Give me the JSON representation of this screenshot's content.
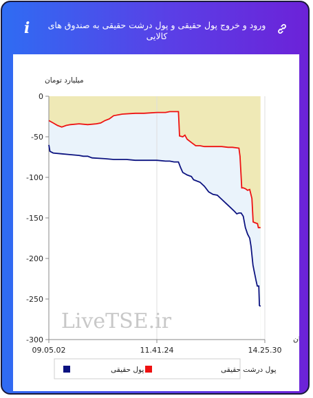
{
  "header": {
    "title": "ورود و خروج پول حقیقی و پول درشت حقیقی به صندوق های کالایی",
    "info_icon": "info-icon",
    "link_icon": "link-icon",
    "info_glyph": "i"
  },
  "watermark": "LiveTSE.ir",
  "chart_data": {
    "type": "line",
    "ylabel": "میلیارد تومان",
    "xlabel": "زمان",
    "ylim": [
      -300,
      0
    ],
    "y_ticks": [
      0,
      -50,
      -100,
      -150,
      -200,
      -250,
      -300
    ],
    "x_tick_labels": [
      "09.05.02",
      "11.41.24",
      "14.25.30"
    ],
    "x_domain": [
      0,
      100
    ],
    "x_tick_positions": [
      0,
      50,
      100
    ],
    "grid": "vertical-at-x-ticks",
    "legend_placement": "bottom",
    "series": [
      {
        "name": "پول حقیقی",
        "color": "#0b1280",
        "points": [
          [
            0,
            -60
          ],
          [
            0.5,
            -68
          ],
          [
            2,
            -70
          ],
          [
            6,
            -71
          ],
          [
            10,
            -72
          ],
          [
            14,
            -73
          ],
          [
            16,
            -74
          ],
          [
            18,
            -74
          ],
          [
            20,
            -76
          ],
          [
            26,
            -77
          ],
          [
            30,
            -78
          ],
          [
            36,
            -78
          ],
          [
            40,
            -79
          ],
          [
            46,
            -79
          ],
          [
            50,
            -79
          ],
          [
            54,
            -80
          ],
          [
            56,
            -80
          ],
          [
            58,
            -81
          ],
          [
            60,
            -81
          ],
          [
            61,
            -88
          ],
          [
            62,
            -94
          ],
          [
            64,
            -97
          ],
          [
            66,
            -99
          ],
          [
            67,
            -103
          ],
          [
            70,
            -106
          ],
          [
            72,
            -111
          ],
          [
            74,
            -118
          ],
          [
            76,
            -121
          ],
          [
            78,
            -122
          ],
          [
            80,
            -127
          ],
          [
            82,
            -132
          ],
          [
            84,
            -137
          ],
          [
            86,
            -142
          ],
          [
            87,
            -145
          ],
          [
            88,
            -144
          ],
          [
            89,
            -144
          ],
          [
            90,
            -148
          ],
          [
            91,
            -162
          ],
          [
            92,
            -170
          ],
          [
            93,
            -175
          ],
          [
            93.6,
            -185
          ],
          [
            94.5,
            -208
          ],
          [
            95,
            -215
          ],
          [
            96,
            -228
          ],
          [
            96.5,
            -234
          ],
          [
            97.2,
            -234
          ],
          [
            97.5,
            -258
          ],
          [
            98,
            -259
          ]
        ]
      },
      {
        "name": "پول درشت حقیقی",
        "color": "#ee1111",
        "points": [
          [
            0,
            -30
          ],
          [
            2,
            -33
          ],
          [
            4,
            -36
          ],
          [
            6,
            -38
          ],
          [
            8,
            -36
          ],
          [
            10,
            -35
          ],
          [
            14,
            -34
          ],
          [
            18,
            -35
          ],
          [
            22,
            -34
          ],
          [
            24,
            -33
          ],
          [
            26,
            -30
          ],
          [
            28,
            -28
          ],
          [
            30,
            -24
          ],
          [
            34,
            -22
          ],
          [
            40,
            -21
          ],
          [
            44,
            -21
          ],
          [
            50,
            -20
          ],
          [
            54,
            -20
          ],
          [
            56,
            -19
          ],
          [
            60,
            -19
          ],
          [
            60.5,
            -49
          ],
          [
            62,
            -50
          ],
          [
            63,
            -48
          ],
          [
            64,
            -53
          ],
          [
            66,
            -57
          ],
          [
            68,
            -61
          ],
          [
            70,
            -61
          ],
          [
            72,
            -62
          ],
          [
            76,
            -62
          ],
          [
            80,
            -62
          ],
          [
            83,
            -63
          ],
          [
            85,
            -63
          ],
          [
            88,
            -64
          ],
          [
            88.5,
            -74
          ],
          [
            89.3,
            -113
          ],
          [
            90,
            -113
          ],
          [
            91,
            -114
          ],
          [
            92,
            -116
          ],
          [
            93,
            -115
          ],
          [
            94,
            -126
          ],
          [
            94.6,
            -155
          ],
          [
            95.5,
            -156
          ],
          [
            96.6,
            -157
          ],
          [
            97,
            -162
          ],
          [
            98,
            -162
          ]
        ]
      }
    ]
  }
}
